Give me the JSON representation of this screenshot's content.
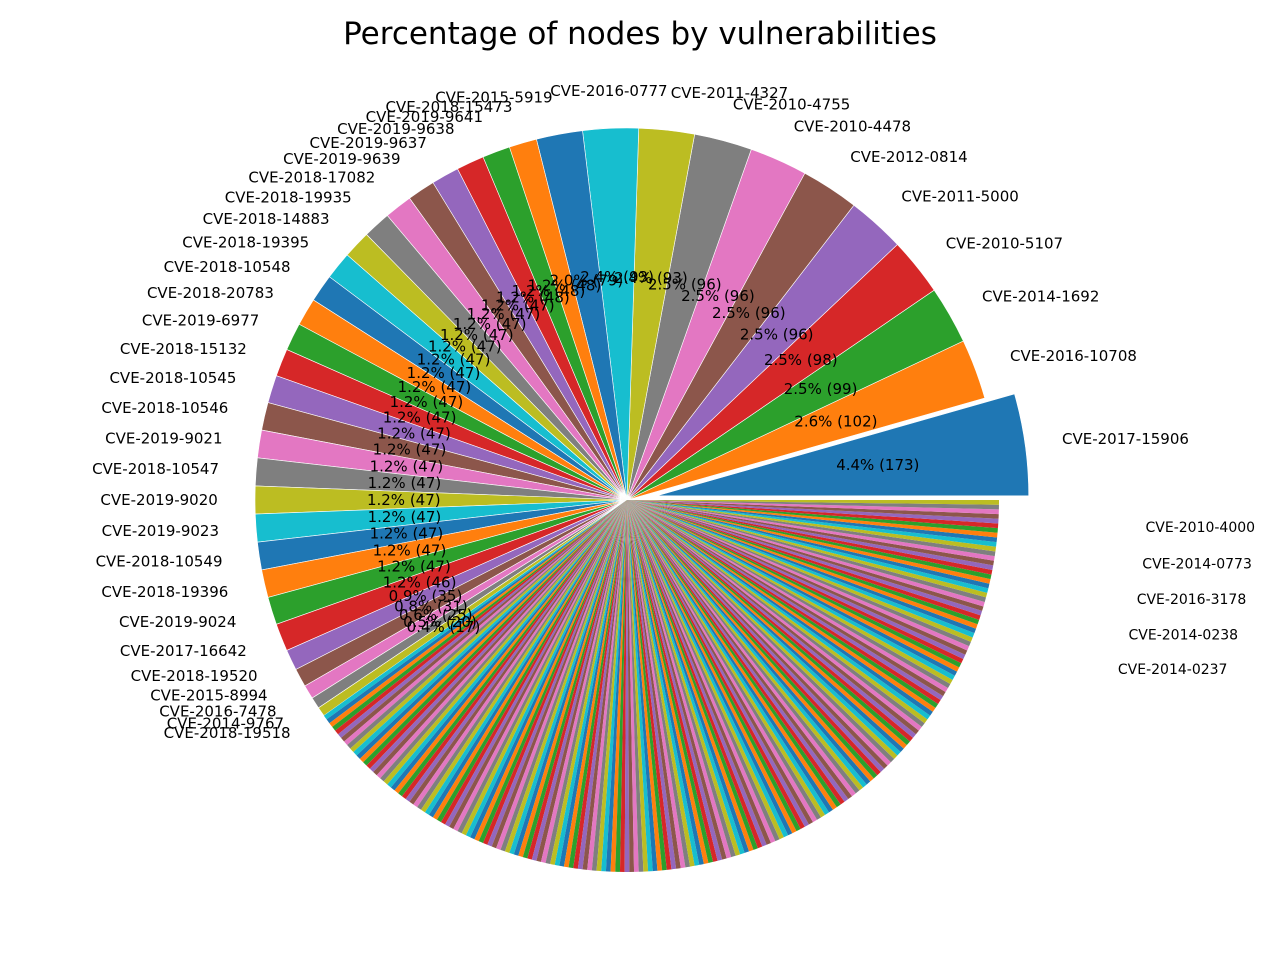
{
  "chart_data": {
    "type": "pie",
    "title": "Percentage of nodes by vulnerabilities",
    "start_angle_deg": 0,
    "direction": "counterclockwise",
    "exploded": [
      "CVE-2017-15906"
    ],
    "slices": [
      {
        "label": "CVE-2017-15906",
        "pct": 4.4,
        "count": 173,
        "color": "#1f77b4"
      },
      {
        "label": "CVE-2016-10708",
        "pct": 2.6,
        "count": 102,
        "color": "#ff7f0e"
      },
      {
        "label": "CVE-2014-1692",
        "pct": 2.5,
        "count": 99,
        "color": "#2ca02c"
      },
      {
        "label": "CVE-2010-5107",
        "pct": 2.5,
        "count": 98,
        "color": "#d62728"
      },
      {
        "label": "CVE-2011-5000",
        "pct": 2.5,
        "count": 96,
        "color": "#9467bd"
      },
      {
        "label": "CVE-2012-0814",
        "pct": 2.5,
        "count": 96,
        "color": "#8c564b"
      },
      {
        "label": "CVE-2010-4478",
        "pct": 2.5,
        "count": 96,
        "color": "#e377c2"
      },
      {
        "label": "CVE-2010-4755",
        "pct": 2.5,
        "count": 96,
        "color": "#7f7f7f"
      },
      {
        "label": "CVE-2011-4327",
        "pct": 2.4,
        "count": 93,
        "color": "#bcbd22"
      },
      {
        "label": "CVE-2016-0777",
        "pct": 2.4,
        "count": 93,
        "color": "#17becf"
      },
      {
        "label": "CVE-2015-5919",
        "pct": 2.0,
        "count": 79,
        "color": "#1f77b4"
      },
      {
        "label": "CVE-2018-15473",
        "pct": 1.2,
        "count": 48,
        "color": "#ff7f0e"
      },
      {
        "label": "CVE-2019-9641",
        "pct": 1.2,
        "count": 48,
        "color": "#2ca02c"
      },
      {
        "label": "CVE-2019-9638",
        "pct": 1.2,
        "count": 48,
        "color": "#d62728"
      },
      {
        "label": "CVE-2019-9637",
        "pct": 1.2,
        "count": 47,
        "color": "#9467bd"
      },
      {
        "label": "CVE-2019-9639",
        "pct": 1.2,
        "count": 47,
        "color": "#8c564b"
      },
      {
        "label": "CVE-2018-17082",
        "pct": 1.2,
        "count": 47,
        "color": "#e377c2"
      },
      {
        "label": "CVE-2018-19935",
        "pct": 1.2,
        "count": 47,
        "color": "#7f7f7f"
      },
      {
        "label": "CVE-2018-14883",
        "pct": 1.2,
        "count": 47,
        "color": "#bcbd22"
      },
      {
        "label": "CVE-2018-19395",
        "pct": 1.2,
        "count": 47,
        "color": "#17becf"
      },
      {
        "label": "CVE-2018-10548",
        "pct": 1.2,
        "count": 47,
        "color": "#1f77b4"
      },
      {
        "label": "CVE-2018-20783",
        "pct": 1.2,
        "count": 47,
        "color": "#ff7f0e"
      },
      {
        "label": "CVE-2019-6977",
        "pct": 1.2,
        "count": 47,
        "color": "#2ca02c"
      },
      {
        "label": "CVE-2018-15132",
        "pct": 1.2,
        "count": 47,
        "color": "#d62728"
      },
      {
        "label": "CVE-2018-10545",
        "pct": 1.2,
        "count": 47,
        "color": "#9467bd"
      },
      {
        "label": "CVE-2018-10546",
        "pct": 1.2,
        "count": 47,
        "color": "#8c564b"
      },
      {
        "label": "CVE-2019-9021",
        "pct": 1.2,
        "count": 47,
        "color": "#e377c2"
      },
      {
        "label": "CVE-2018-10547",
        "pct": 1.2,
        "count": 47,
        "color": "#7f7f7f"
      },
      {
        "label": "CVE-2019-9020",
        "pct": 1.2,
        "count": 47,
        "color": "#bcbd22"
      },
      {
        "label": "CVE-2019-9023",
        "pct": 1.2,
        "count": 47,
        "color": "#17becf"
      },
      {
        "label": "CVE-2018-10549",
        "pct": 1.2,
        "count": 47,
        "color": "#1f77b4"
      },
      {
        "label": "CVE-2018-19396",
        "pct": 1.2,
        "count": 47,
        "color": "#ff7f0e"
      },
      {
        "label": "CVE-2019-9024",
        "pct": 1.2,
        "count": 47,
        "color": "#2ca02c"
      },
      {
        "label": "CVE-2017-16642",
        "pct": 1.2,
        "count": 46,
        "color": "#d62728"
      },
      {
        "label": "CVE-2018-19520",
        "pct": 0.9,
        "count": 35,
        "color": "#9467bd"
      },
      {
        "label": "CVE-2015-8994",
        "pct": 0.8,
        "count": 31,
        "color": "#8c564b"
      },
      {
        "label": "CVE-2016-7478",
        "pct": 0.6,
        "count": 25,
        "color": "#e377c2"
      },
      {
        "label": "CVE-2014-9767",
        "pct": 0.5,
        "count": 20,
        "color": "#7f7f7f"
      },
      {
        "label": "CVE-2018-19518",
        "pct": 0.4,
        "count": 17,
        "color": "#bcbd22"
      }
    ],
    "remaining_slices": {
      "count": 200,
      "pct_each": 0.2,
      "colors": [
        "#17becf",
        "#1f77b4",
        "#ff7f0e",
        "#2ca02c",
        "#d62728",
        "#9467bd",
        "#8c564b",
        "#e377c2",
        "#7f7f7f",
        "#bcbd22"
      ]
    },
    "visible_tail_labels": [
      "CVE-2010-4000",
      "CVE-2014-0773",
      "CVE-2016-3178",
      "CVE-2014-0238",
      "CVE-2014-0237"
    ]
  }
}
